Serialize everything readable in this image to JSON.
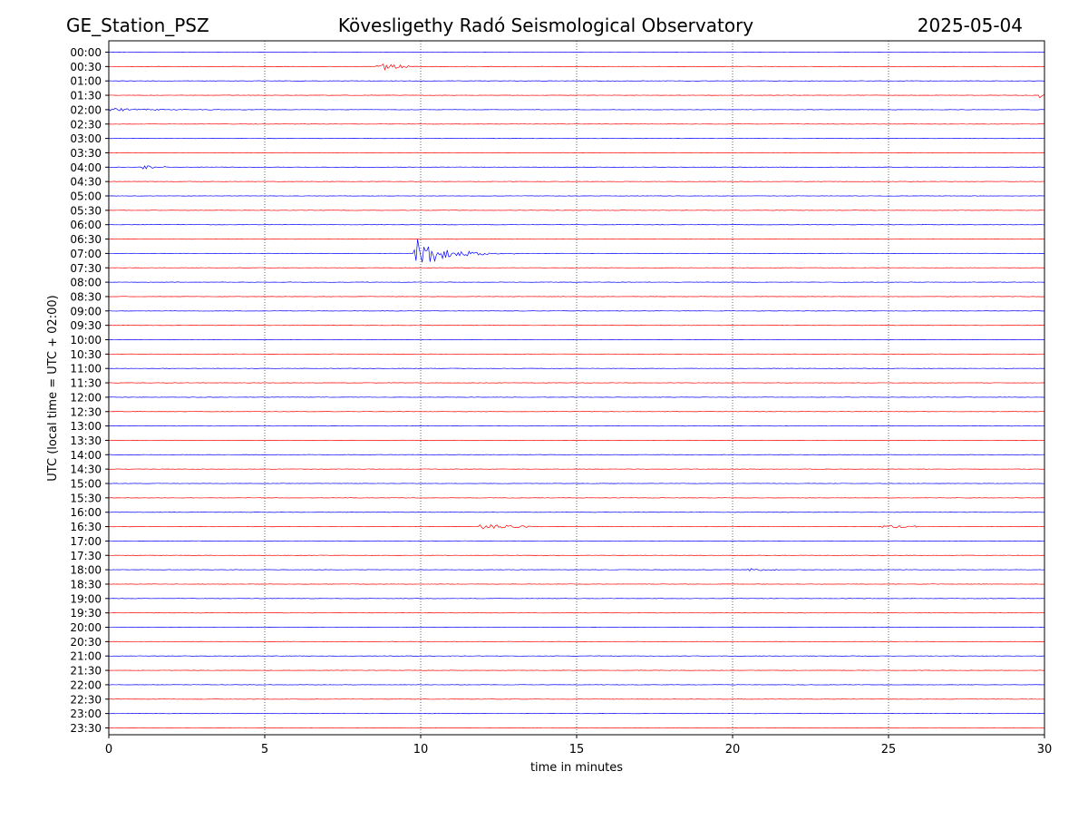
{
  "chart_data": {
    "type": "line",
    "title_left": "GE_Station_PSZ",
    "title_center": "Kövesligethy Radó Seismological Observatory",
    "title_right": "2025-05-04",
    "xlabel": "time in minutes",
    "ylabel": "UTC (local time = UTC + 02:00)",
    "xlim": [
      0,
      30
    ],
    "xticks": [
      0,
      5,
      10,
      15,
      20,
      25,
      30
    ],
    "grid": "vertical dotted lines at x ticks",
    "trace_colors": [
      "#0000ff",
      "#ff0000"
    ],
    "traces": [
      "00:00",
      "00:30",
      "01:00",
      "01:30",
      "02:00",
      "02:30",
      "03:00",
      "03:30",
      "04:00",
      "04:30",
      "05:00",
      "05:30",
      "06:00",
      "06:30",
      "07:00",
      "07:30",
      "08:00",
      "08:30",
      "09:00",
      "09:30",
      "10:00",
      "10:30",
      "11:00",
      "11:30",
      "12:00",
      "12:30",
      "13:00",
      "13:30",
      "14:00",
      "14:30",
      "15:00",
      "15:30",
      "16:00",
      "16:30",
      "17:00",
      "17:30",
      "18:00",
      "18:30",
      "19:00",
      "19:30",
      "20:00",
      "20:30",
      "21:00",
      "21:30",
      "22:00",
      "22:30",
      "23:00",
      "23:30"
    ],
    "events": [
      {
        "trace": "00:30",
        "start": 8.6,
        "end": 9.6,
        "amplitude": 0.35,
        "decay": 1.2
      },
      {
        "trace": "01:30",
        "start": 29.85,
        "end": 30.0,
        "amplitude": 0.2,
        "decay": 4.0
      },
      {
        "trace": "02:00",
        "start": 0.0,
        "end": 3.5,
        "amplitude": 0.12,
        "decay": 0.6
      },
      {
        "trace": "04:00",
        "start": 1.1,
        "end": 1.8,
        "amplitude": 0.15,
        "decay": 1.0
      },
      {
        "trace": "07:00",
        "start": 9.8,
        "end": 13.2,
        "amplitude": 1.3,
        "decay": 1.1
      },
      {
        "trace": "16:30",
        "start": 11.8,
        "end": 13.5,
        "amplitude": 0.2,
        "decay": 0.5
      },
      {
        "trace": "16:30",
        "start": 24.8,
        "end": 26.0,
        "amplitude": 0.12,
        "decay": 0.8
      },
      {
        "trace": "18:00",
        "start": 20.5,
        "end": 21.5,
        "amplitude": 0.1,
        "decay": 0.8
      }
    ]
  }
}
